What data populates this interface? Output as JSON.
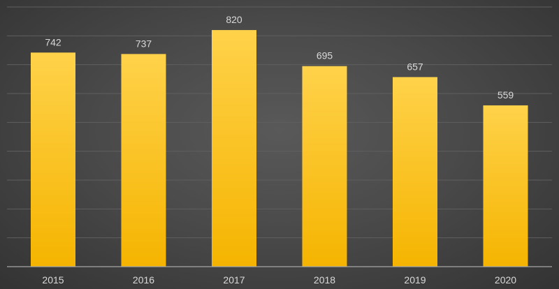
{
  "chart_data": {
    "type": "bar",
    "categories": [
      "2015",
      "2016",
      "2017",
      "2018",
      "2019",
      "2020"
    ],
    "values": [
      742,
      737,
      820,
      695,
      657,
      559
    ],
    "title": "",
    "xlabel": "",
    "ylabel": "",
    "ylim": [
      0,
      900
    ],
    "grid": true,
    "gridline_step": 100,
    "legend": "none",
    "data_labels": true,
    "bar_color_top": "#ffd24a",
    "bar_color_bottom": "#f5b400",
    "background_color": "#4a4a4a",
    "label_color": "#d9d9d9"
  }
}
